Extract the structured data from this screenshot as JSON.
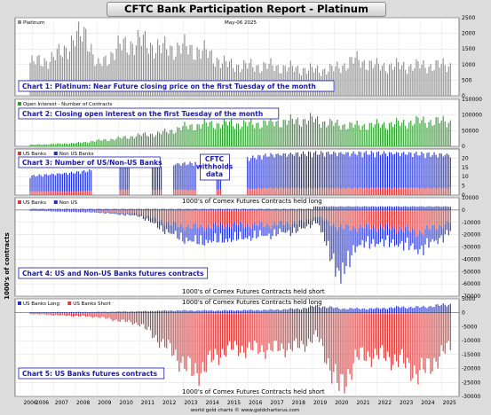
{
  "title": "CFTC Bank Participation Report - Platinum",
  "footer": "world gold charts © www.goldchartsrus.com",
  "y_axis_title": "1000's of contracts",
  "x_years": [
    "2006",
    "2006",
    "2007",
    "2008",
    "2009",
    "2010",
    "2011",
    "2012",
    "2013",
    "2014",
    "2015",
    "2016",
    "2017",
    "2018",
    "2019",
    "2020",
    "2021",
    "2022",
    "2023",
    "2024",
    "2025"
  ],
  "colors": {
    "blue": "#1f2fd0",
    "red": "#d83a3a",
    "green": "#2f9a2f",
    "gray": "#8c8c8c"
  },
  "chart_data": [
    {
      "type": "bar",
      "title": "Chart 1: Platinum: Near Future closing price on the first Tuesday of the month",
      "legend": [
        "Platinum"
      ],
      "date_label": "May-06  2025",
      "yticks": [
        "2500",
        "2000",
        "1500",
        "1000",
        "500",
        "0"
      ],
      "ylim": [
        0,
        2500
      ],
      "x": [
        2006,
        2007,
        2008,
        2008.5,
        2009,
        2010,
        2011,
        2012,
        2013,
        2014,
        2015,
        2016,
        2017,
        2018,
        2019,
        2020,
        2021,
        2022,
        2023,
        2024,
        2025.4
      ],
      "values": [
        1050,
        1200,
        1800,
        2050,
        900,
        1550,
        1750,
        1500,
        1550,
        1400,
        1000,
        950,
        950,
        880,
        820,
        850,
        1150,
        950,
        950,
        950,
        980
      ]
    },
    {
      "type": "bar",
      "title": "Chart 2: Closing open interest on the first Tuesday of the month",
      "legend": [
        "Open Interest - Number of Contracts"
      ],
      "yticks": [
        "150000",
        "100000",
        "50000",
        "0"
      ],
      "ylim": [
        0,
        150000
      ],
      "x": [
        2006,
        2008,
        2010,
        2011,
        2012,
        2013,
        2014,
        2015,
        2016,
        2017,
        2018,
        2019,
        2020,
        2021,
        2022,
        2023,
        2024,
        2025.4
      ],
      "values": [
        5000,
        10000,
        25000,
        35000,
        42000,
        60000,
        70000,
        72000,
        70000,
        75000,
        80000,
        85000,
        70000,
        65000,
        68000,
        72000,
        80000,
        78000
      ]
    },
    {
      "type": "bar",
      "title": "Chart 3: Number of US/Non-US Banks",
      "legend": [
        "US Banks",
        "Non US Banks"
      ],
      "annotation": [
        "CFTC",
        "withholds",
        "data"
      ],
      "yticks": [
        "20",
        "15",
        "10",
        "5",
        "0"
      ],
      "ylim": [
        0,
        25
      ],
      "x": [
        2006,
        2008,
        2010,
        2013,
        2015,
        2017,
        2019,
        2021,
        2023,
        2025.4
      ],
      "series": [
        {
          "name": "US Banks",
          "values": [
            2,
            2,
            3,
            3,
            3,
            4,
            4,
            4,
            4,
            4
          ]
        },
        {
          "name": "Non US Banks",
          "values": [
            9,
            11,
            13,
            15,
            16,
            19,
            20,
            20,
            20,
            19
          ]
        }
      ]
    },
    {
      "type": "bar",
      "title": "Chart 4: US and Non-US Banks futures contracts",
      "legend": [
        "US Banks",
        "Non US"
      ],
      "top_note": "1000's of Comex Futures Contracts held long",
      "bottom_note": "1000's of Comex Futures Contracts held short",
      "yticks": [
        "10000",
        "0",
        "-10000",
        "-20000",
        "-30000",
        "-40000",
        "-50000",
        "-60000",
        "-70000"
      ],
      "ylim": [
        -70000,
        10000
      ],
      "x": [
        2006,
        2009,
        2011,
        2012.5,
        2013.5,
        2015,
        2017,
        2018.5,
        2019.2,
        2020.3,
        2021,
        2022,
        2023,
        2024,
        2025.4
      ],
      "series": [
        {
          "name": "US Banks",
          "values": [
            -500,
            -1000,
            -3000,
            -12000,
            -14000,
            -12000,
            -12000,
            -10000,
            -5000,
            -15000,
            -14000,
            -14000,
            -15000,
            -18000,
            -10000
          ]
        },
        {
          "name": "Non US",
          "values": [
            -200,
            -1000,
            -2000,
            -8000,
            -12000,
            -12000,
            -8000,
            -6000,
            -4000,
            -40000,
            -15000,
            -12000,
            -12000,
            -14000,
            -8000
          ]
        }
      ]
    },
    {
      "type": "bar",
      "title": "Chart 5: US Banks futures contracts",
      "legend": [
        "US Banks Long",
        "US Banks Short"
      ],
      "top_note": "1000's of Comex Futures Contracts held long",
      "bottom_note": "1000's of Comex Futures Contracts held short",
      "yticks": [
        "5000",
        "0",
        "-5000",
        "-10000",
        "-15000",
        "-20000",
        "-25000",
        "-30000"
      ],
      "ylim": [
        -30000,
        5000
      ],
      "x": [
        2006,
        2009,
        2011,
        2012.5,
        2013.5,
        2015,
        2017,
        2018.5,
        2019.2,
        2020.3,
        2021,
        2022,
        2023,
        2024,
        2025.4
      ],
      "series": [
        {
          "name": "US Banks Long",
          "values": [
            200,
            300,
            500,
            800,
            800,
            800,
            1000,
            1500,
            2500,
            1500,
            1500,
            1500,
            2000,
            2000,
            3000
          ]
        },
        {
          "name": "US Banks Short",
          "values": [
            -500,
            -1500,
            -4000,
            -14000,
            -22000,
            -13000,
            -13000,
            -12000,
            -8000,
            -28000,
            -16000,
            -15000,
            -17000,
            -22000,
            -12000
          ]
        }
      ]
    }
  ]
}
